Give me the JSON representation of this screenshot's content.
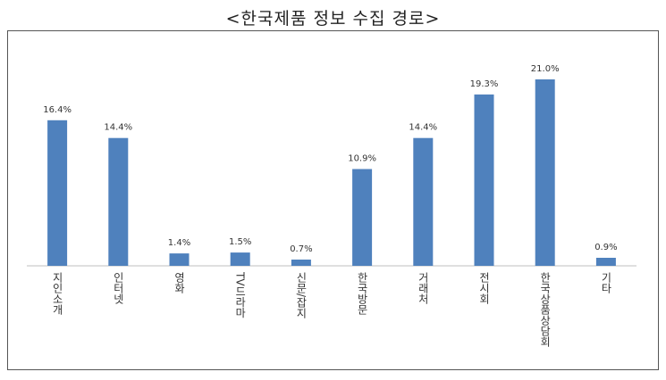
{
  "chart_data": {
    "type": "bar",
    "title": "<한국제품 정보 수집 경로>",
    "xlabel": "",
    "ylabel": "",
    "categories": [
      "지인소개",
      "인터넷",
      "영화",
      "TV드라마",
      "신문/잡지",
      "한국방문",
      "거래처",
      "전시회",
      "한국상품상담회",
      "기타"
    ],
    "values": [
      16.4,
      14.4,
      1.4,
      1.5,
      0.7,
      10.9,
      14.4,
      19.3,
      21.0,
      0.9
    ],
    "data_labels": [
      "16.4%",
      "14.4%",
      "1.4%",
      "1.5%",
      "0.7%",
      "10.9%",
      "14.4%",
      "19.3%",
      "21.0%",
      "0.9%"
    ],
    "ylim": [
      0,
      21.0
    ],
    "grid": false,
    "bar_color": "#4f81bd",
    "axis_color": "#bfbfbf"
  }
}
